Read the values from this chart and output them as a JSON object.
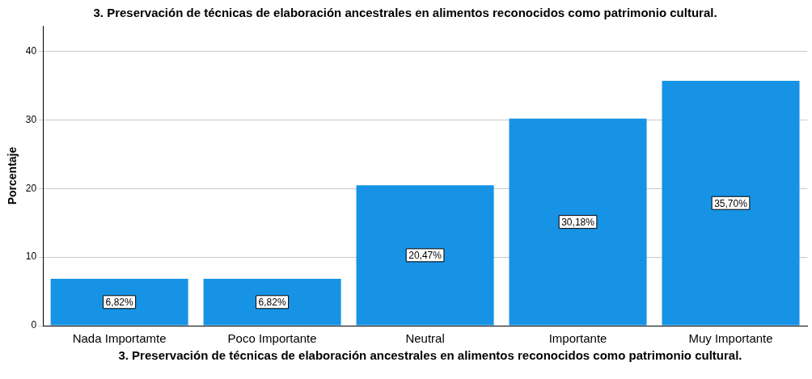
{
  "chart_data": {
    "type": "bar",
    "title": "3. Preservación de técnicas de elaboración ancestrales en alimentos reconocidos como patrimonio cultural.",
    "xlabel": "3. Preservación de técnicas de elaboración ancestrales en alimentos reconocidos como patrimonio cultural.",
    "ylabel": "Porcentaje",
    "categories": [
      "Nada Importamte",
      "Poco Importante",
      "Neutral",
      "Importante",
      "Muy Importante"
    ],
    "values": [
      6.82,
      6.82,
      20.47,
      30.18,
      35.7
    ],
    "value_labels": [
      "6,82%",
      "6,82%",
      "20,47%",
      "30,18%",
      "35,70%"
    ],
    "color": "#1793e6",
    "ylim": [
      0,
      43.7
    ],
    "yticks": [
      0,
      10,
      20,
      30,
      40
    ],
    "grid": "y",
    "legend": false
  }
}
